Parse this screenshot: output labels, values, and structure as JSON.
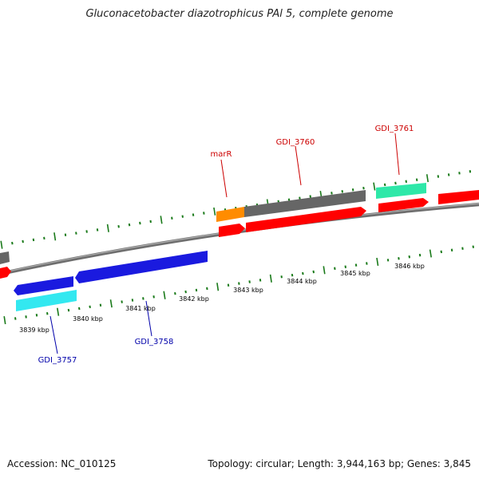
{
  "title": "Gluconacetobacter diazotrophicus PAl 5, complete genome",
  "footer": {
    "accession": "Accession: NC_010125",
    "summary": "Topology: circular; Length: 3,944,163 bp; Genes: 3,845"
  },
  "colors": {
    "backbone": "#808080",
    "tick": "#1a7a1a",
    "forward_label": "#cc0000",
    "reverse_label": "#0000aa",
    "gene_red": "#ff0000",
    "gene_grey": "#666666",
    "gene_blue": "#1a1adf",
    "gene_cyan": "#33e8f0",
    "gene_teal": "#2ee8a8",
    "gene_orange": "#ff8c00"
  },
  "scale_labels": [
    "3839 kbp",
    "3840 kbp",
    "3841 kbp",
    "3842 kbp",
    "3843 kbp",
    "3844 kbp",
    "3845 kbp",
    "3846 kbp"
  ],
  "gene_labels": {
    "forward": [
      "marR",
      "GDI_3760",
      "GDI_3761"
    ],
    "reverse": [
      "GDI_3757",
      "GDI_3758"
    ]
  }
}
